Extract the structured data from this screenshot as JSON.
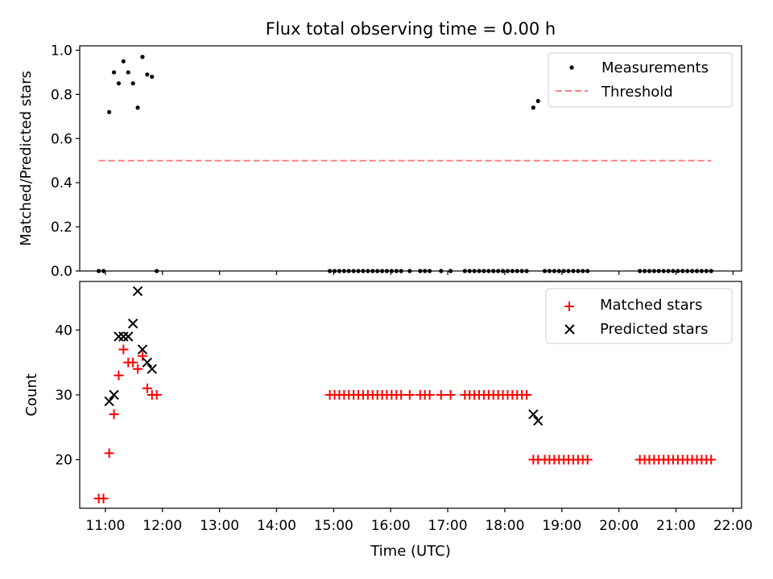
{
  "title": "Flux total observing time = 0.00 h",
  "xlabel": "Time (UTC)",
  "colors": {
    "measurement": "#000000",
    "threshold": "#ff8080",
    "matched": "#ff0000",
    "predicted": "#000000"
  },
  "chart_data": [
    {
      "type": "scatter",
      "title": "Flux total observing time = 0.00 h",
      "ylabel": "Matched/Predicted stars",
      "ylim": [
        0,
        1.02
      ],
      "yticks": [
        "0.0",
        "0.2",
        "0.4",
        "0.6",
        "0.8",
        "1.0"
      ],
      "ytick_values": [
        0,
        0.2,
        0.4,
        0.6,
        0.8,
        1.0
      ],
      "xlim": [
        "10:33",
        "22:09"
      ],
      "legend_position": "top-right",
      "series": [
        {
          "name": "Measurements",
          "marker": "dot",
          "points": [
            [
              "10:53",
              0.0
            ],
            [
              "10:58",
              0.0
            ],
            [
              "11:04",
              0.72
            ],
            [
              "11:09",
              0.9
            ],
            [
              "11:14",
              0.85
            ],
            [
              "11:19",
              0.95
            ],
            [
              "11:24",
              0.9
            ],
            [
              "11:29",
              0.85
            ],
            [
              "11:34",
              0.74
            ],
            [
              "11:39",
              0.97
            ],
            [
              "11:44",
              0.89
            ],
            [
              "11:49",
              0.88
            ],
            [
              "11:54",
              0.0
            ],
            [
              "14:56",
              0.0
            ],
            [
              "15:01",
              0.0
            ],
            [
              "15:06",
              0.0
            ],
            [
              "15:11",
              0.0
            ],
            [
              "15:16",
              0.0
            ],
            [
              "15:21",
              0.0
            ],
            [
              "15:26",
              0.0
            ],
            [
              "15:31",
              0.0
            ],
            [
              "15:36",
              0.0
            ],
            [
              "15:41",
              0.0
            ],
            [
              "15:46",
              0.0
            ],
            [
              "15:51",
              0.0
            ],
            [
              "15:56",
              0.0
            ],
            [
              "16:01",
              0.0
            ],
            [
              "16:06",
              0.0
            ],
            [
              "16:11",
              0.0
            ],
            [
              "16:20",
              0.0
            ],
            [
              "16:31",
              0.0
            ],
            [
              "16:36",
              0.0
            ],
            [
              "16:41",
              0.0
            ],
            [
              "16:53",
              0.0
            ],
            [
              "17:03",
              0.0
            ],
            [
              "17:18",
              0.0
            ],
            [
              "17:23",
              0.0
            ],
            [
              "17:28",
              0.0
            ],
            [
              "17:33",
              0.0
            ],
            [
              "17:38",
              0.0
            ],
            [
              "17:43",
              0.0
            ],
            [
              "17:48",
              0.0
            ],
            [
              "17:53",
              0.0
            ],
            [
              "17:58",
              0.0
            ],
            [
              "18:03",
              0.0
            ],
            [
              "18:08",
              0.0
            ],
            [
              "18:13",
              0.0
            ],
            [
              "18:18",
              0.0
            ],
            [
              "18:23",
              0.0
            ],
            [
              "18:30",
              0.74
            ],
            [
              "18:35",
              0.77
            ],
            [
              "18:42",
              0.0
            ],
            [
              "18:47",
              0.0
            ],
            [
              "18:52",
              0.0
            ],
            [
              "18:57",
              0.0
            ],
            [
              "19:02",
              0.0
            ],
            [
              "19:07",
              0.0
            ],
            [
              "19:12",
              0.0
            ],
            [
              "19:17",
              0.0
            ],
            [
              "19:22",
              0.0
            ],
            [
              "19:27",
              0.0
            ],
            [
              "20:22",
              0.0
            ],
            [
              "20:27",
              0.0
            ],
            [
              "20:32",
              0.0
            ],
            [
              "20:37",
              0.0
            ],
            [
              "20:42",
              0.0
            ],
            [
              "20:47",
              0.0
            ],
            [
              "20:52",
              0.0
            ],
            [
              "20:57",
              0.0
            ],
            [
              "21:02",
              0.0
            ],
            [
              "21:07",
              0.0
            ],
            [
              "21:12",
              0.0
            ],
            [
              "21:17",
              0.0
            ],
            [
              "21:22",
              0.0
            ],
            [
              "21:27",
              0.0
            ],
            [
              "21:32",
              0.0
            ],
            [
              "21:37",
              0.0
            ]
          ]
        },
        {
          "name": "Threshold",
          "marker": "dashed-line",
          "points": [
            [
              "10:53",
              0.5
            ],
            [
              "21:37",
              0.5
            ]
          ]
        }
      ]
    },
    {
      "type": "scatter",
      "ylabel": "Count",
      "xlabel": "Time (UTC)",
      "ylim": [
        12.5,
        47.5
      ],
      "yticks": [
        "20",
        "30",
        "40"
      ],
      "ytick_values": [
        20,
        30,
        40
      ],
      "xlim": [
        "10:33",
        "22:09"
      ],
      "xticks": [
        "11:00",
        "12:00",
        "13:00",
        "14:00",
        "15:00",
        "16:00",
        "17:00",
        "18:00",
        "19:00",
        "20:00",
        "21:00",
        "22:00"
      ],
      "legend_position": "top-right",
      "series": [
        {
          "name": "Matched stars",
          "marker": "plus",
          "points": [
            [
              "10:53",
              14
            ],
            [
              "10:58",
              14
            ],
            [
              "11:04",
              21
            ],
            [
              "11:09",
              27
            ],
            [
              "11:14",
              33
            ],
            [
              "11:19",
              37
            ],
            [
              "11:24",
              35
            ],
            [
              "11:29",
              35
            ],
            [
              "11:34",
              34
            ],
            [
              "11:39",
              36
            ],
            [
              "11:44",
              31
            ],
            [
              "11:49",
              30
            ],
            [
              "11:54",
              30
            ],
            [
              "14:56",
              30
            ],
            [
              "15:01",
              30
            ],
            [
              "15:06",
              30
            ],
            [
              "15:11",
              30
            ],
            [
              "15:16",
              30
            ],
            [
              "15:21",
              30
            ],
            [
              "15:26",
              30
            ],
            [
              "15:31",
              30
            ],
            [
              "15:36",
              30
            ],
            [
              "15:41",
              30
            ],
            [
              "15:46",
              30
            ],
            [
              "15:51",
              30
            ],
            [
              "15:56",
              30
            ],
            [
              "16:01",
              30
            ],
            [
              "16:06",
              30
            ],
            [
              "16:11",
              30
            ],
            [
              "16:20",
              30
            ],
            [
              "16:31",
              30
            ],
            [
              "16:36",
              30
            ],
            [
              "16:41",
              30
            ],
            [
              "16:53",
              30
            ],
            [
              "17:03",
              30
            ],
            [
              "17:18",
              30
            ],
            [
              "17:23",
              30
            ],
            [
              "17:28",
              30
            ],
            [
              "17:33",
              30
            ],
            [
              "17:38",
              30
            ],
            [
              "17:43",
              30
            ],
            [
              "17:48",
              30
            ],
            [
              "17:53",
              30
            ],
            [
              "17:58",
              30
            ],
            [
              "18:03",
              30
            ],
            [
              "18:08",
              30
            ],
            [
              "18:13",
              30
            ],
            [
              "18:18",
              30
            ],
            [
              "18:23",
              30
            ],
            [
              "18:30",
              20
            ],
            [
              "18:35",
              20
            ],
            [
              "18:42",
              20
            ],
            [
              "18:47",
              20
            ],
            [
              "18:52",
              20
            ],
            [
              "18:57",
              20
            ],
            [
              "19:02",
              20
            ],
            [
              "19:07",
              20
            ],
            [
              "19:12",
              20
            ],
            [
              "19:17",
              20
            ],
            [
              "19:22",
              20
            ],
            [
              "19:27",
              20
            ],
            [
              "20:22",
              20
            ],
            [
              "20:27",
              20
            ],
            [
              "20:32",
              20
            ],
            [
              "20:37",
              20
            ],
            [
              "20:42",
              20
            ],
            [
              "20:47",
              20
            ],
            [
              "20:52",
              20
            ],
            [
              "20:57",
              20
            ],
            [
              "21:02",
              20
            ],
            [
              "21:07",
              20
            ],
            [
              "21:12",
              20
            ],
            [
              "21:17",
              20
            ],
            [
              "21:22",
              20
            ],
            [
              "21:27",
              20
            ],
            [
              "21:32",
              20
            ],
            [
              "21:37",
              20
            ]
          ]
        },
        {
          "name": "Predicted stars",
          "marker": "x",
          "points": [
            [
              "11:04",
              29
            ],
            [
              "11:09",
              30
            ],
            [
              "11:14",
              39
            ],
            [
              "11:19",
              39
            ],
            [
              "11:24",
              39
            ],
            [
              "11:29",
              41
            ],
            [
              "11:34",
              46
            ],
            [
              "11:39",
              37
            ],
            [
              "11:44",
              35
            ],
            [
              "11:49",
              34
            ],
            [
              "18:30",
              27
            ],
            [
              "18:35",
              26
            ]
          ]
        }
      ]
    }
  ]
}
